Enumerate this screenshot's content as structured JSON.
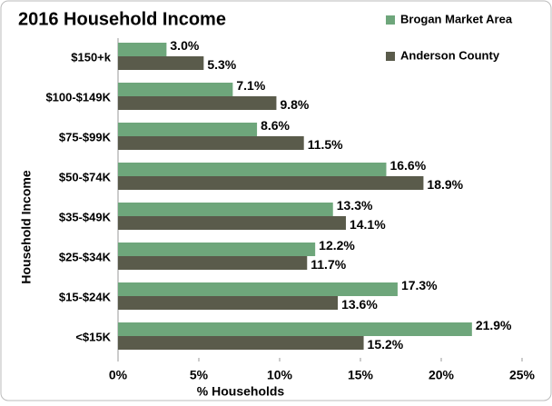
{
  "chart_data": {
    "type": "bar",
    "orientation": "horizontal",
    "title": "2016 Household Income",
    "xlabel": "% Households",
    "ylabel": "Household Income",
    "categories": [
      "$150+k",
      "$100-$149K",
      "$75-$99K",
      "$50-$74K",
      "$35-$49K",
      "$25-$34K",
      "$15-$24K",
      "<$15K"
    ],
    "series": [
      {
        "name": "Brogan Market Area",
        "color": "#6ea67b",
        "values": [
          3.0,
          7.1,
          8.6,
          16.6,
          13.3,
          12.2,
          17.3,
          21.9
        ],
        "value_labels": [
          "3.0%",
          "7.1%",
          "8.6%",
          "16.6%",
          "13.3%",
          "12.2%",
          "17.3%",
          "21.9%"
        ]
      },
      {
        "name": "Anderson County",
        "color": "#5a5b4b",
        "values": [
          5.3,
          9.8,
          11.5,
          18.9,
          14.1,
          11.7,
          13.6,
          15.2
        ],
        "value_labels": [
          "5.3%",
          "9.8%",
          "11.5%",
          "18.9%",
          "14.1%",
          "11.7%",
          "13.6%",
          "15.2%"
        ]
      }
    ],
    "xlim": [
      0,
      25
    ],
    "xticks": [
      {
        "value": 0,
        "label": "0%"
      },
      {
        "value": 5,
        "label": "5%"
      },
      {
        "value": 10,
        "label": "10%"
      },
      {
        "value": 15,
        "label": "15%"
      },
      {
        "value": 20,
        "label": "20%"
      },
      {
        "value": 25,
        "label": "25%"
      }
    ],
    "legend": "top-right",
    "grid": false
  }
}
